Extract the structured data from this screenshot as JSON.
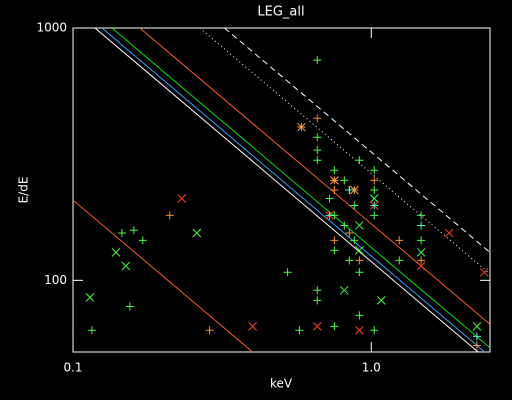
{
  "chart_data": {
    "type": "scatter",
    "title": "LEG_all",
    "xlabel": "keV",
    "ylabel": "E/dE",
    "xscale": "log",
    "yscale": "log",
    "xlim": [
      0.1,
      2.5
    ],
    "ylim": [
      52,
      1000
    ],
    "xticks": [
      0.1,
      {
        "value": 1,
        "label": "1.0"
      }
    ],
    "yticks": [
      100,
      1000
    ],
    "series": [
      {
        "marker": "line",
        "style": "solid",
        "color": "#ff5a28",
        "x": [
          0.1,
          0.4
        ],
        "values": [
          208,
          52
        ]
      },
      {
        "marker": "line",
        "style": "solid",
        "color": "#ffffff",
        "x": [
          0.1185,
          2.28
        ],
        "values": [
          1000,
          52
        ]
      },
      {
        "marker": "line",
        "style": "solid",
        "color": "#3ca0ff",
        "x": [
          0.125,
          2.4
        ],
        "values": [
          1000,
          52
        ]
      },
      {
        "marker": "line",
        "style": "solid",
        "color": "#00e000",
        "x": [
          0.135,
          2.5
        ],
        "values": [
          1000,
          54
        ]
      },
      {
        "marker": "line",
        "style": "solid",
        "color": "#ff5a28",
        "x": [
          0.1675,
          2.5
        ],
        "values": [
          1000,
          67
        ]
      },
      {
        "marker": "line",
        "style": "dotted",
        "color": "#ffffff",
        "x": [
          0.266,
          2.5
        ],
        "values": [
          1000,
          106
        ]
      },
      {
        "marker": "line",
        "style": "dashed",
        "color": "#ffffff",
        "x": [
          0.322,
          2.5
        ],
        "values": [
          1000,
          129
        ]
      },
      {
        "marker": "plus",
        "color": "#40ff40",
        "x": [
          0.1157,
          0.1459,
          0.16,
          0.1714,
          0.1551,
          0.524,
          0.574,
          0.659,
          0.659,
          0.659,
          0.659,
          0.659,
          0.724,
          0.752,
          0.752,
          0.752,
          0.812,
          0.812,
          0.844,
          0.844,
          0.877,
          0.877,
          0.912,
          0.912,
          1.023,
          1.023,
          1.023,
          1.241,
          1.469,
          1.469,
          2.26,
          0.659,
          0.752,
          0.912,
          1.023
        ],
        "values": [
          63.4,
          154,
          158,
          144,
          78.8,
          107.6,
          63.4,
          746,
          369,
          328,
          299,
          91.3,
          211,
          273,
          181,
          131.5,
          249,
          165,
          228,
          120,
          198,
          144,
          299,
          107.6,
          273,
          228,
          181,
          120,
          181,
          144,
          55.2,
          83.3,
          65.7,
          72.6,
          63.4
        ]
      },
      {
        "marker": "x",
        "color": "#40ff40",
        "x": [
          0.114,
          0.1393,
          0.1504,
          0.26,
          0.812,
          0.912,
          1.08,
          1.469,
          2.26,
          0.912,
          1.023
        ],
        "values": [
          85.6,
          129,
          114,
          154,
          91.3,
          131.5,
          83.3,
          129,
          65.7,
          165,
          211
        ]
      },
      {
        "marker": "x",
        "color": "#ff4020",
        "x": [
          0.2315,
          0.4,
          0.659,
          0.724,
          0.912,
          1.023,
          1.824,
          2.39,
          1.469
        ],
        "values": [
          211,
          65.7,
          65.7,
          181,
          63.4,
          198,
          154,
          107.6,
          114
        ]
      },
      {
        "marker": "plus",
        "color": "#ff8c1e",
        "x": [
          0.211,
          0.287,
          0.659,
          0.752,
          0.752,
          0.844,
          0.912,
          1.023,
          1.241,
          1.469,
          2.26
        ],
        "values": [
          181,
          63.4,
          439,
          228,
          144,
          154,
          120,
          249,
          144,
          120,
          55.2
        ]
      },
      {
        "marker": "asterisk",
        "color": "#ff9a3c",
        "x": [
          0.583,
          0.752,
          0.877
        ],
        "values": [
          405,
          249,
          228
        ]
      },
      {
        "marker": "plus",
        "color": "#40ffd0",
        "x": [
          0.724,
          0.844,
          1.023,
          1.469,
          2.26
        ],
        "values": [
          181,
          228,
          198,
          165,
          60
        ]
      }
    ]
  }
}
